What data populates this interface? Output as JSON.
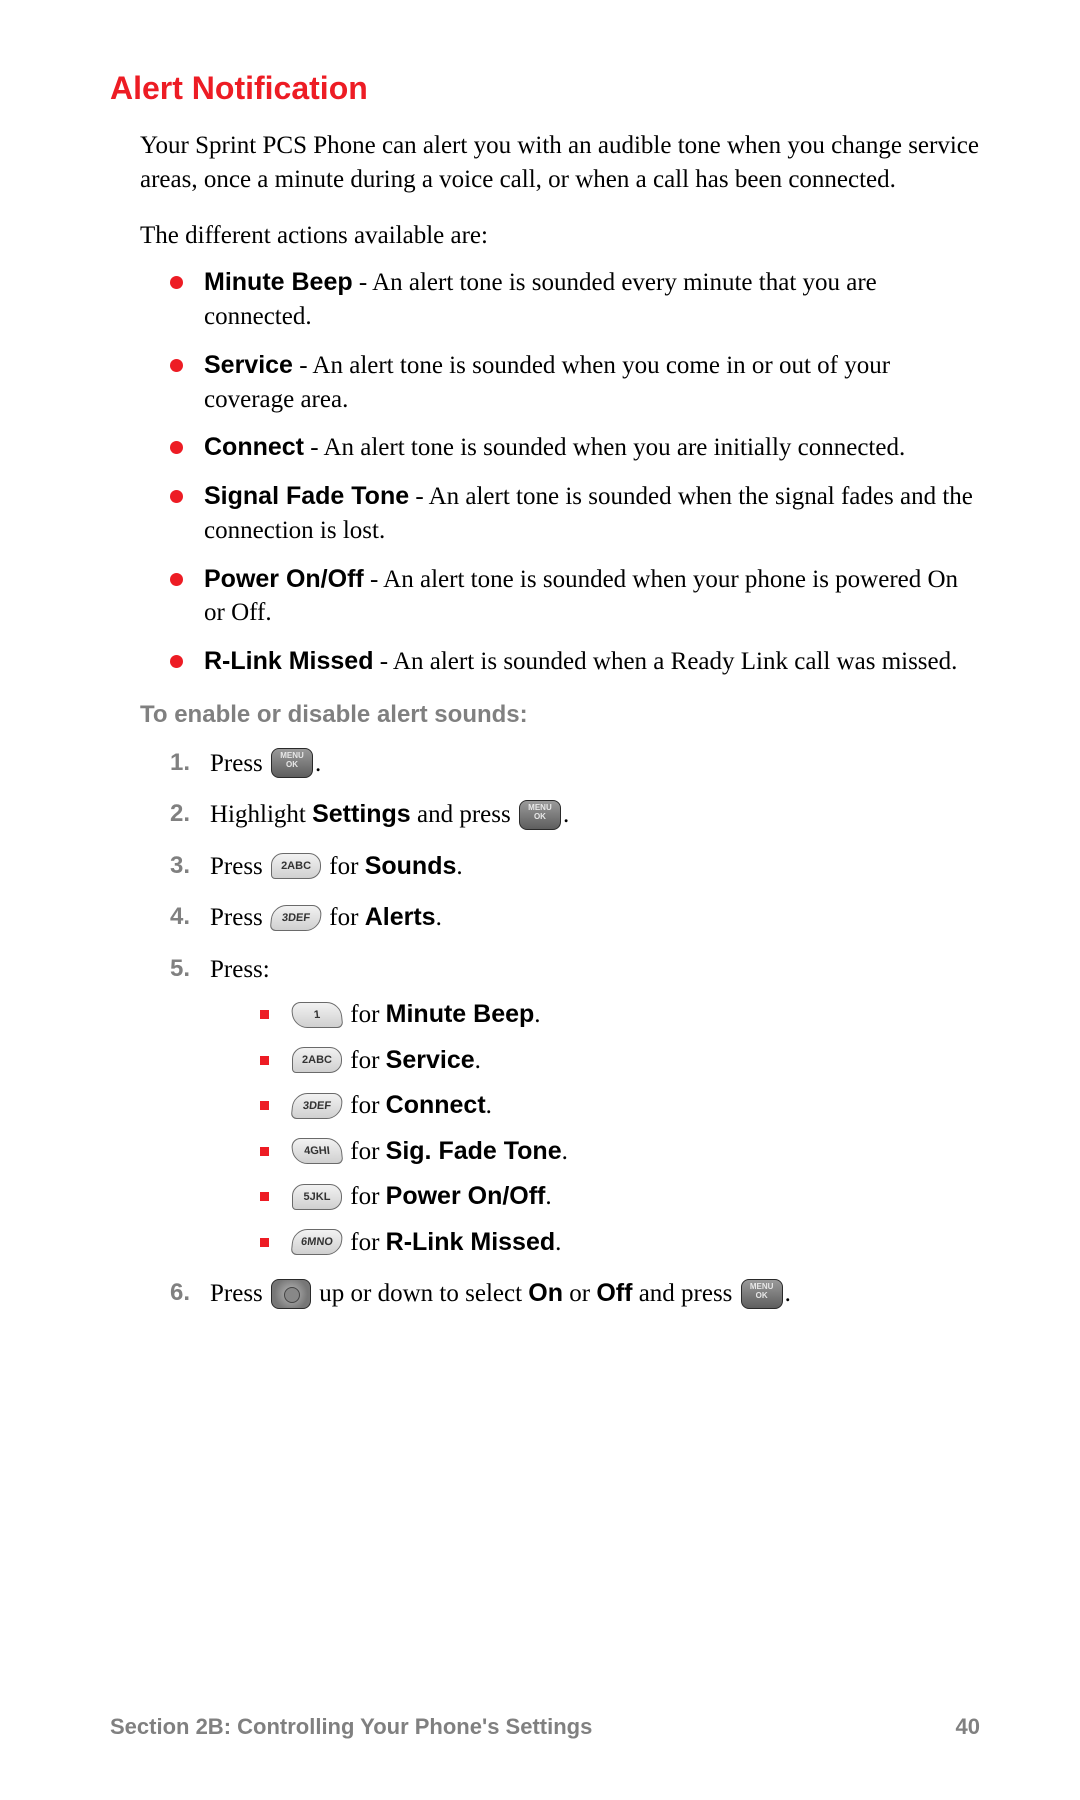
{
  "colors": {
    "heading": "#ed1c24",
    "body_text": "#000000",
    "muted": "#808080",
    "bullet_dot": "#ed1c24",
    "sub_bullet": "#ed1c24",
    "background": "#ffffff"
  },
  "typography": {
    "heading_family": "Arial, Helvetica, sans-serif",
    "heading_size_pt": 24,
    "body_family": "Georgia, Times, serif",
    "body_size_pt": 18,
    "bold_labels_family": "Arial, Helvetica, sans-serif"
  },
  "heading": "Alert Notification",
  "intro": "Your Sprint PCS Phone can alert you with an audible tone when you change service areas, once a minute during a voice call, or when a call has been connected.",
  "subintro": "The different actions available are:",
  "actions": [
    {
      "name": "Minute Beep",
      "desc": " - An alert tone is sounded every minute that you are connected."
    },
    {
      "name": "Service",
      "desc": " - An alert tone is sounded when you come in or out of your coverage area."
    },
    {
      "name": "Connect",
      "desc": " - An alert tone is sounded when you are initially connected."
    },
    {
      "name": "Signal Fade Tone",
      "desc": " - An alert tone is sounded when the signal fades and the connection is lost."
    },
    {
      "name": "Power On/Off",
      "desc": " - An alert tone is sounded when your phone is powered On or Off."
    },
    {
      "name": "R-Link Missed",
      "desc": " - An alert is sounded when a Ready Link call was missed."
    }
  ],
  "subhead": "To enable or disable alert sounds:",
  "steps": {
    "s1": {
      "num": "1.",
      "a": "Press ",
      "b": "."
    },
    "s2": {
      "num": "2.",
      "a": "Highlight ",
      "bold": "Settings",
      "b": " and press ",
      "c": "."
    },
    "s3": {
      "num": "3.",
      "a": "Press ",
      "key": "2ABC",
      "b": " for ",
      "bold": "Sounds",
      "c": "."
    },
    "s4": {
      "num": "4.",
      "a": "Press ",
      "key": "3DEF",
      "b": " for ",
      "bold": "Alerts",
      "c": "."
    },
    "s5": {
      "num": "5.",
      "a": "Press:"
    },
    "s6": {
      "num": "6.",
      "a": "Press ",
      "b": " up or down to select ",
      "bold1": "On",
      "mid": " or ",
      "bold2": "Off",
      "c": " and press ",
      "d": "."
    }
  },
  "sublist": [
    {
      "key": "1",
      "for_word": " for ",
      "bold": "Minute Beep",
      "end": "."
    },
    {
      "key": "2ABC",
      "for_word": " for ",
      "bold": "Service",
      "end": "."
    },
    {
      "key": "3DEF",
      "for_word": " for ",
      "bold": "Connect",
      "end": "."
    },
    {
      "key": "4GHI",
      "for_word": " for ",
      "bold": "Sig. Fade Tone",
      "end": "."
    },
    {
      "key": "5JKL",
      "for_word": " for ",
      "bold": "Power On/Off",
      "end": "."
    },
    {
      "key": "6MNO",
      "for_word": " for ",
      "bold": "R-Link Missed",
      "end": "."
    }
  ],
  "footer": {
    "section": "Section 2B: Controlling Your Phone's Settings",
    "page": "40"
  }
}
